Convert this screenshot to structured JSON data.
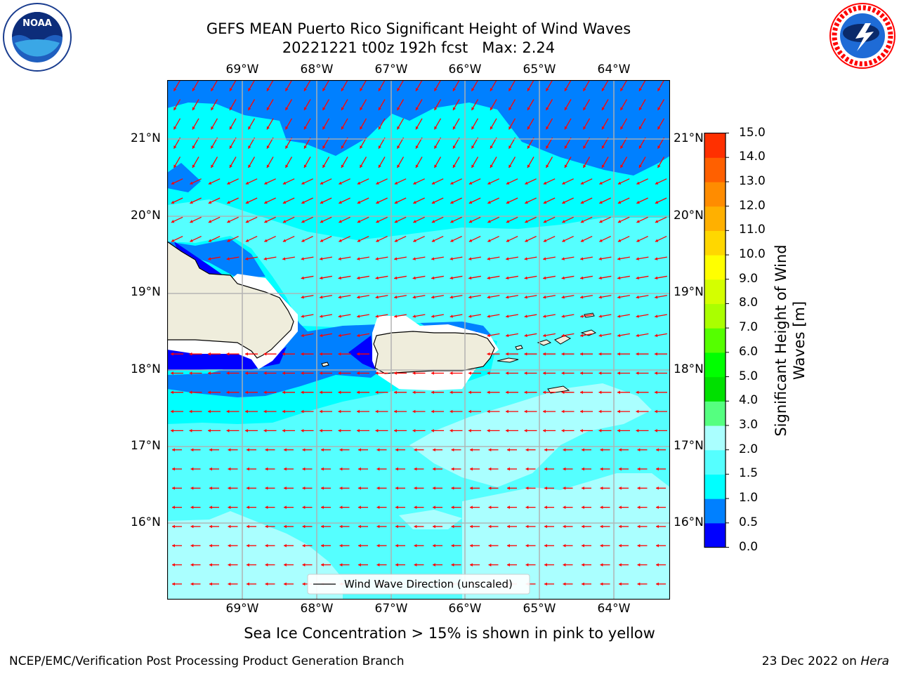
{
  "header": {
    "title": "GEFS MEAN Puerto Rico Significant Height of Wind Waves",
    "subtitle": "20221221 t00z 192h fcst   Max: 2.24"
  },
  "logos": {
    "left": {
      "text": "NOAA",
      "ring_text": "NATIONAL OCEANIC AND ATMOSPHERIC ADMINISTRATION"
    },
    "right": {
      "ring_text": "NATIONAL WEATHER SERVICE"
    }
  },
  "map": {
    "lon_labels": [
      "69°W",
      "68°W",
      "67°W",
      "66°W",
      "65°W",
      "64°W"
    ],
    "lat_labels": [
      "21°N",
      "20°N",
      "19°N",
      "18°N",
      "17°N",
      "16°N"
    ],
    "legend_label": "Wind Wave Direction (unscaled)",
    "arrow_color": "#ff0000",
    "land_color": "#efeddc"
  },
  "colorbar": {
    "title": "Significant Height of Wind Waves [m]",
    "tick_labels": [
      "15.0",
      "14.0",
      "13.0",
      "12.0",
      "11.0",
      "10.0",
      "9.0",
      "8.0",
      "7.0",
      "6.0",
      "5.0",
      "4.0",
      "3.0",
      "2.0",
      "1.5",
      "1.0",
      "0.5",
      "0.0"
    ],
    "colors": [
      "#0000ff",
      "#0080ff",
      "#00ffff",
      "#55ffff",
      "#aaffff",
      "#55ff80",
      "#00e000",
      "#00ff00",
      "#55ff00",
      "#aaff00",
      "#d4ff00",
      "#ffff00",
      "#ffd700",
      "#ffb000",
      "#ff8c00",
      "#ff6000",
      "#ff3000",
      "#ff0000"
    ]
  },
  "footer": {
    "note": "Sea Ice Concentration > 15% is shown in pink to yellow",
    "left": "NCEP/EMC/Verification Post Processing Product Generation Branch",
    "right_prefix": "23 Dec 2022 on ",
    "right_host": "Hera"
  }
}
